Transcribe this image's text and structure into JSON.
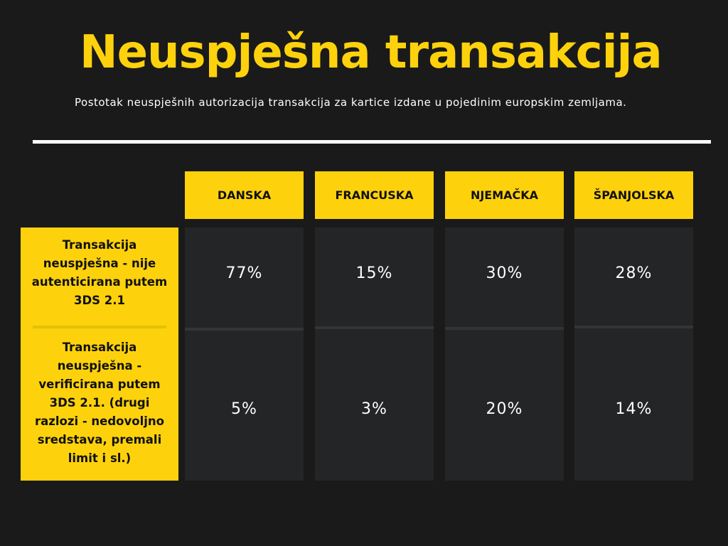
{
  "title": "Neuspješna transakcija",
  "subtitle": "Postotak neuspješnih autorizacija transakcija za kartice izdane u pojedinim europskim zemljama.",
  "colors": {
    "background": "#1a1a1a",
    "accent": "#fdd20c",
    "cell_background": "#242526",
    "text_light": "#ffffff",
    "text_dark": "#111111"
  },
  "chart_data": {
    "type": "table",
    "title": "Neuspješna transakcija",
    "subtitle": "Postotak neuspješnih autorizacija transakcija za kartice izdane u pojedinim europskim zemljama.",
    "columns": [
      "DANSKA",
      "FRANCUSKA",
      "NJEMAČKA",
      "ŠPANJOLSKA"
    ],
    "rows": [
      {
        "label": "Transakcija neuspješna - nije autenticirana putem 3DS 2.1",
        "values": [
          "77%",
          "15%",
          "30%",
          "28%"
        ]
      },
      {
        "label": "Transakcija neuspješna - verificirana putem 3DS 2.1. (drugi razlozi - nedovoljno sredstava, premali limit i sl.)",
        "values": [
          "5%",
          "3%",
          "20%",
          "14%"
        ]
      }
    ]
  }
}
